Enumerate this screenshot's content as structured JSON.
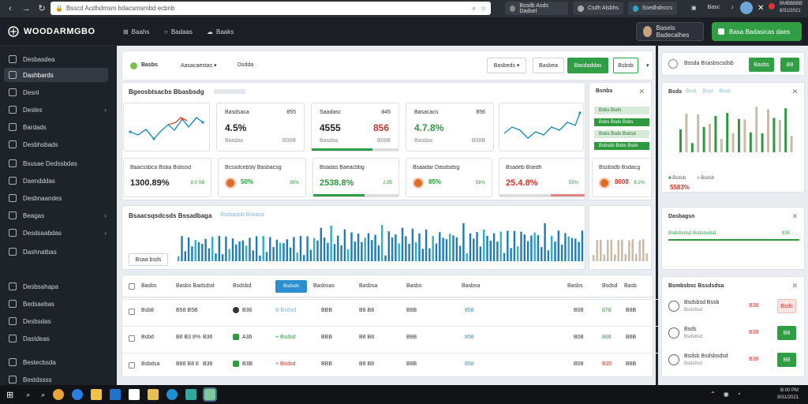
{
  "browser": {
    "url": "Bsscd Acdhdmsm bdacsmsmbd ecbnb",
    "tabs": [
      {
        "label": "Bssdb Asds Dadsel"
      },
      {
        "label": "Csdh Alsbhs"
      },
      {
        "label": "Ssedhdnccs"
      }
    ],
    "right_labels": [
      "Basc",
      "BMBBBBB",
      "8/31/2021"
    ]
  },
  "header": {
    "logo": "WOODARMGBO",
    "nav": [
      "Baahs",
      "Badaas",
      "Baaks"
    ],
    "user_button": "Basels Badecalhes",
    "action_button": "Basa Badasicas daes"
  },
  "sidebar": {
    "items": [
      {
        "label": "Desbasdea",
        "chev": ""
      },
      {
        "label": "Dashbards",
        "chev": ""
      },
      {
        "label": "Desnl",
        "chev": ""
      },
      {
        "label": "Desles",
        "chev": "›"
      },
      {
        "label": "Bardads",
        "chev": ""
      },
      {
        "label": "Desbhsbads",
        "chev": ""
      },
      {
        "label": "Bsusae Dedssbdas",
        "chev": ""
      },
      {
        "label": "Daendddas",
        "chev": ""
      },
      {
        "label": "Desbnaandes",
        "chev": ""
      },
      {
        "label": "Beagas",
        "chev": "›"
      },
      {
        "label": "Desdsaabdas",
        "chev": "›"
      },
      {
        "label": "Dashnatbas",
        "chev": ""
      },
      {
        "label": "Desbsahapa",
        "chev": ""
      },
      {
        "label": "Bedsaebas",
        "chev": ""
      },
      {
        "label": "Desbsdas",
        "chev": ""
      },
      {
        "label": "Dastdeas",
        "chev": ""
      },
      {
        "label": "Bestecbsda",
        "chev": ""
      },
      {
        "label": "Bestdssss",
        "chev": ""
      }
    ]
  },
  "toolbar": {
    "title_a": "Basbs",
    "title_b": "Aasacaestas",
    "title_c": "Dsdda",
    "btn1": "Basbeds",
    "btn2": "Basbea",
    "btn3": "Basdaddas",
    "btn4": "Bsbsb"
  },
  "overview": {
    "title": "Bgeosbtsacbs Bbasbsdg"
  },
  "stat_cards": [
    {
      "title": "Basdsaca",
      "right": "855",
      "value": "4.5%",
      "sub1": "Basdas",
      "sub2": "B08B"
    },
    {
      "title": "Saadasc",
      "right": "845",
      "value": "4555",
      "sub1": "Basdas",
      "sub2": "B08B",
      "value2": "856"
    },
    {
      "title": "Basacacs",
      "right": "856",
      "value": "4.7.8%",
      "sub1": "Basdas",
      "sub2": "B08B"
    }
  ],
  "metric_cards": [
    {
      "title": "Baacssbca Bsba Bsbssd",
      "value": "1300.89%",
      "tag": "8.0 S8"
    },
    {
      "title": "Bcssdcebsly Basbacsg",
      "value": "50%",
      "tag": "38%"
    },
    {
      "title": "Bsadas Baeacbbg",
      "value": "2538.8%",
      "tag": "2.85"
    },
    {
      "title": "Bsaadar Dasdsdsg",
      "value": "85%",
      "tag": "56%"
    },
    {
      "title": "Bsadeb Bsedh",
      "value": "25.4.8%",
      "tag": "S5%"
    },
    {
      "title": "Bssbsdb Bsdacg",
      "value": "8008",
      "tag": "8.2%"
    }
  ],
  "panel_b": {
    "title": "Bsnbs",
    "rows": [
      "Bsbs Bsds",
      "Bsbs Bsds Bsbs",
      "Bsbs Bsds Bsbsd",
      "Bsbsds Bsbs Bsds"
    ]
  },
  "histogram": {
    "title": "Bsaacsqsdcsds Bssadbaga",
    "legend": "Bsdsasbb Bssaca",
    "filter": "Bsaa bsds"
  },
  "table": {
    "headers": [
      "Basbs",
      "Basbs Badsdsd",
      "Bsdsbd",
      "Bsdsbasbs",
      "Basbsas",
      "Basbsa",
      "Basbs",
      "Basbsa",
      "Basbs",
      "Bsdsd",
      "Basb"
    ],
    "active_header": "Bsdsds",
    "rows": [
      {
        "name": "Bsb8",
        "c2": "B58 B5B",
        "c3": "B36",
        "c4": "B Bsdsd",
        "c5": "BBB",
        "c6": "B8 B8",
        "c7": "B8B",
        "c8": "858",
        "c9": "B08",
        "c10": "878",
        "c11": "B8B"
      },
      {
        "name": "Bsbd",
        "c2": "B8 B3 8%",
        "c2b": "B36",
        "c3": "A36",
        "c4": "+ Bsdsd",
        "c5": "BBB",
        "c6": "B8 B8",
        "c7": "B8B",
        "c8": "858",
        "c9": "B08",
        "c10": "868",
        "c11": "B8B"
      },
      {
        "name": "Bsbdsa",
        "c2": "B88 B8 8",
        "c2b": "B36",
        "c3": "B3B",
        "c4": "+ Bsdsd",
        "c5": "BBB",
        "c6": "B8 B8",
        "c7": "B8B",
        "c8": "858",
        "c9": "B08",
        "c10": "B35",
        "c11": "B8B"
      }
    ]
  },
  "right_panel": {
    "top_title": "Bssda Bsasbscsdsb",
    "top_btn1": "Basbs",
    "top_btn2": "B8",
    "chart_title": "Bsds",
    "chart_tabs": [
      "Bssd",
      "Bssd",
      "Bssd"
    ],
    "legend_a": "Bsdsb",
    "legend_b": "Bsdsb",
    "value_a": "5583%",
    "section2_title": "Dasbagsn",
    "section2_row": "Bsdsbsdsd Bsdsbsdsd",
    "section2_val": "835",
    "section3_title": "Bsmbsbsc Bssdsdsa",
    "people": [
      {
        "name": "Bsdsbsd Bssb",
        "sub": "Bsdsbsd",
        "val": "B38",
        "btn": "Bsds"
      },
      {
        "name": "Bsds",
        "sub": "Bsdsbsd",
        "val": "B38",
        "btn": "B8"
      },
      {
        "name": "Bsdsb Bsdsbsdsd",
        "sub": "Bsdsbsd",
        "val": "B38",
        "btn": "B8"
      }
    ]
  },
  "taskbar": {
    "time": "B:00 PM",
    "date": "8/31/2021"
  }
}
